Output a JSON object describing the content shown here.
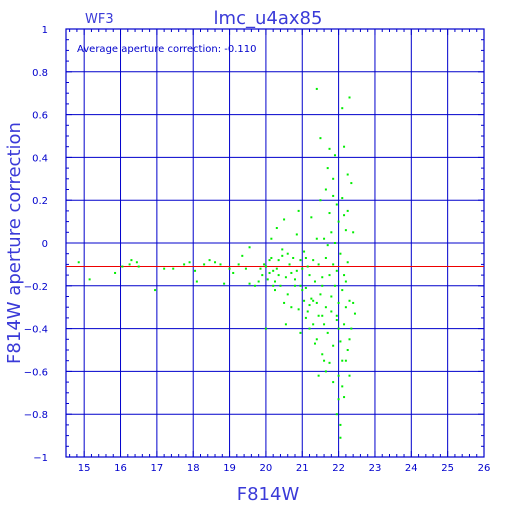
{
  "chart_data": {
    "type": "scatter",
    "corner_label": "WF3",
    "title": "lmc_u4ax85",
    "annotation": "Average aperture correction: -0.110",
    "xlabel": "F814W",
    "ylabel": "F814W aperture correction",
    "xlim": [
      14.5,
      26
    ],
    "ylim": [
      -1,
      1
    ],
    "x_ticks": [
      "15",
      "16",
      "17",
      "18",
      "19",
      "20",
      "21",
      "22",
      "23",
      "24",
      "25",
      "26"
    ],
    "x_tick_values": [
      15,
      16,
      17,
      18,
      19,
      20,
      21,
      22,
      23,
      24,
      25,
      26
    ],
    "y_ticks": [
      "1",
      "0.8",
      "0.6",
      "0.4",
      "0.2",
      "0",
      "−0.2",
      "−0.4",
      "−0.6",
      "−0.8",
      "−1"
    ],
    "y_tick_values": [
      1,
      0.8,
      0.6,
      0.4,
      0.2,
      0,
      -0.2,
      -0.4,
      -0.6,
      -0.8,
      -1
    ],
    "grid": true,
    "reference_line": -0.11,
    "colors": {
      "axes": "#0000cc",
      "points": "#00ee00",
      "reference_line": "#ee0000",
      "text": "#3a3ad8"
    },
    "points": [
      [
        14.85,
        -0.09
      ],
      [
        15.15,
        -0.17
      ],
      [
        15.85,
        -0.14
      ],
      [
        16.05,
        -0.11
      ],
      [
        16.25,
        -0.1
      ],
      [
        16.3,
        -0.08
      ],
      [
        16.45,
        -0.09
      ],
      [
        16.5,
        -0.11
      ],
      [
        16.95,
        -0.22
      ],
      [
        17.2,
        -0.12
      ],
      [
        17.45,
        -0.12
      ],
      [
        17.75,
        -0.1
      ],
      [
        17.9,
        -0.09
      ],
      [
        18.05,
        -0.13
      ],
      [
        18.1,
        -0.18
      ],
      [
        18.3,
        -0.1
      ],
      [
        18.45,
        -0.08
      ],
      [
        18.6,
        -0.09
      ],
      [
        18.75,
        -0.1
      ],
      [
        18.85,
        -0.19
      ],
      [
        19.0,
        -0.12
      ],
      [
        19.1,
        -0.14
      ],
      [
        19.25,
        -0.1
      ],
      [
        19.35,
        -0.06
      ],
      [
        19.45,
        -0.12
      ],
      [
        19.55,
        -0.19
      ],
      [
        19.55,
        -0.02
      ],
      [
        19.7,
        -0.2
      ],
      [
        19.8,
        -0.18
      ],
      [
        19.85,
        -0.12
      ],
      [
        19.9,
        -0.15
      ],
      [
        19.95,
        -0.1
      ],
      [
        20.0,
        -0.11
      ],
      [
        20.05,
        -0.17
      ],
      [
        20.1,
        -0.08
      ],
      [
        20.1,
        -0.14
      ],
      [
        20.15,
        -0.07
      ],
      [
        20.15,
        0.02
      ],
      [
        20.2,
        -0.13
      ],
      [
        20.25,
        -0.18
      ],
      [
        20.25,
        -0.22
      ],
      [
        20.3,
        0.07
      ],
      [
        20.3,
        -0.12
      ],
      [
        20.35,
        -0.08
      ],
      [
        20.35,
        -0.15
      ],
      [
        20.4,
        -0.2
      ],
      [
        20.45,
        -0.03
      ],
      [
        20.45,
        -0.06
      ],
      [
        20.5,
        0.11
      ],
      [
        20.5,
        -0.28
      ],
      [
        20.55,
        -0.16
      ],
      [
        20.6,
        -0.05
      ],
      [
        20.6,
        -0.24
      ],
      [
        20.65,
        -0.1
      ],
      [
        20.7,
        -0.3
      ],
      [
        20.75,
        -0.07
      ],
      [
        20.8,
        -0.17
      ],
      [
        20.8,
        -0.2
      ],
      [
        20.85,
        0.04
      ],
      [
        20.85,
        -0.13
      ],
      [
        20.9,
        0.15
      ],
      [
        20.9,
        -0.31
      ],
      [
        20.95,
        -0.08
      ],
      [
        20.95,
        -0.42
      ],
      [
        21.0,
        -0.22
      ],
      [
        21.05,
        -0.27
      ],
      [
        21.05,
        -0.04
      ],
      [
        21.1,
        -0.21
      ],
      [
        21.1,
        -0.35
      ],
      [
        21.15,
        -0.11
      ],
      [
        21.2,
        -0.29
      ],
      [
        21.2,
        -0.15
      ],
      [
        21.25,
        -0.26
      ],
      [
        21.25,
        0.12
      ],
      [
        21.3,
        -0.38
      ],
      [
        21.3,
        -0.08
      ],
      [
        21.35,
        -0.18
      ],
      [
        21.35,
        -0.47
      ],
      [
        21.4,
        -0.28
      ],
      [
        21.4,
        0.02
      ],
      [
        21.45,
        -0.34
      ],
      [
        21.45,
        -0.1
      ],
      [
        21.5,
        0.49
      ],
      [
        21.5,
        -0.24
      ],
      [
        21.55,
        -0.52
      ],
      [
        21.55,
        -0.2
      ],
      [
        21.6,
        0.02
      ],
      [
        21.6,
        -0.38
      ],
      [
        21.65,
        -0.3
      ],
      [
        21.65,
        0.25
      ],
      [
        21.65,
        -0.07
      ],
      [
        21.7,
        0.35
      ],
      [
        21.7,
        -0.42
      ],
      [
        21.75,
        -0.15
      ],
      [
        21.75,
        0.14
      ],
      [
        21.8,
        -0.32
      ],
      [
        21.8,
        -0.25
      ],
      [
        21.8,
        0.05
      ],
      [
        21.85,
        0.3
      ],
      [
        21.85,
        -0.1
      ],
      [
        21.85,
        -0.48
      ],
      [
        21.9,
        0.41
      ],
      [
        21.9,
        -0.2
      ],
      [
        21.9,
        0.0
      ],
      [
        21.95,
        -0.36
      ],
      [
        21.95,
        -0.13
      ],
      [
        21.95,
        0.18
      ],
      [
        22.0,
        -0.62
      ],
      [
        22.0,
        -0.28
      ],
      [
        22.0,
        0.1
      ],
      [
        22.0,
        -0.73
      ],
      [
        22.05,
        -0.85
      ],
      [
        22.05,
        -0.46
      ],
      [
        22.05,
        -0.05
      ],
      [
        22.1,
        0.63
      ],
      [
        22.1,
        -0.22
      ],
      [
        22.1,
        -0.67
      ],
      [
        22.1,
        0.21
      ],
      [
        22.15,
        -0.38
      ],
      [
        22.15,
        -0.15
      ],
      [
        22.15,
        0.45
      ],
      [
        22.2,
        -0.55
      ],
      [
        22.2,
        0.06
      ],
      [
        22.2,
        -0.3
      ],
      [
        22.25,
        0.32
      ],
      [
        22.25,
        -0.5
      ],
      [
        22.25,
        -0.09
      ],
      [
        22.3,
        0.68
      ],
      [
        22.3,
        -0.62
      ],
      [
        22.3,
        -0.27
      ],
      [
        22.35,
        0.28
      ],
      [
        22.35,
        -0.4
      ],
      [
        22.4,
        -0.28
      ],
      [
        22.4,
        0.05
      ],
      [
        22.45,
        -0.33
      ],
      [
        21.4,
        0.72
      ],
      [
        21.55,
        -0.34
      ],
      [
        21.75,
        -0.56
      ],
      [
        21.95,
        -0.8
      ],
      [
        22.05,
        -0.91
      ],
      [
        22.15,
        0.13
      ],
      [
        21.7,
        -0.01
      ],
      [
        21.3,
        -0.27
      ],
      [
        21.15,
        -0.32
      ],
      [
        20.95,
        -0.2
      ],
      [
        21.0,
        -0.12
      ],
      [
        21.4,
        -0.45
      ],
      [
        21.6,
        -0.55
      ],
      [
        21.85,
        -0.65
      ],
      [
        22.0,
        -0.4
      ],
      [
        22.2,
        -0.18
      ],
      [
        20.2,
        -0.2
      ],
      [
        20.0,
        -0.4
      ],
      [
        20.55,
        -0.38
      ],
      [
        21.1,
        -0.07
      ],
      [
        21.5,
        0.2
      ],
      [
        21.75,
        0.44
      ],
      [
        22.1,
        -0.55
      ],
      [
        21.55,
        -0.16
      ],
      [
        21.2,
        -0.4
      ],
      [
        21.95,
        -0.34
      ],
      [
        21.65,
        -0.6
      ],
      [
        22.25,
        0.15
      ],
      [
        20.7,
        -0.14
      ],
      [
        21.45,
        -0.62
      ],
      [
        21.85,
        0.22
      ],
      [
        22.15,
        -0.72
      ],
      [
        22.3,
        -0.45
      ]
    ]
  }
}
